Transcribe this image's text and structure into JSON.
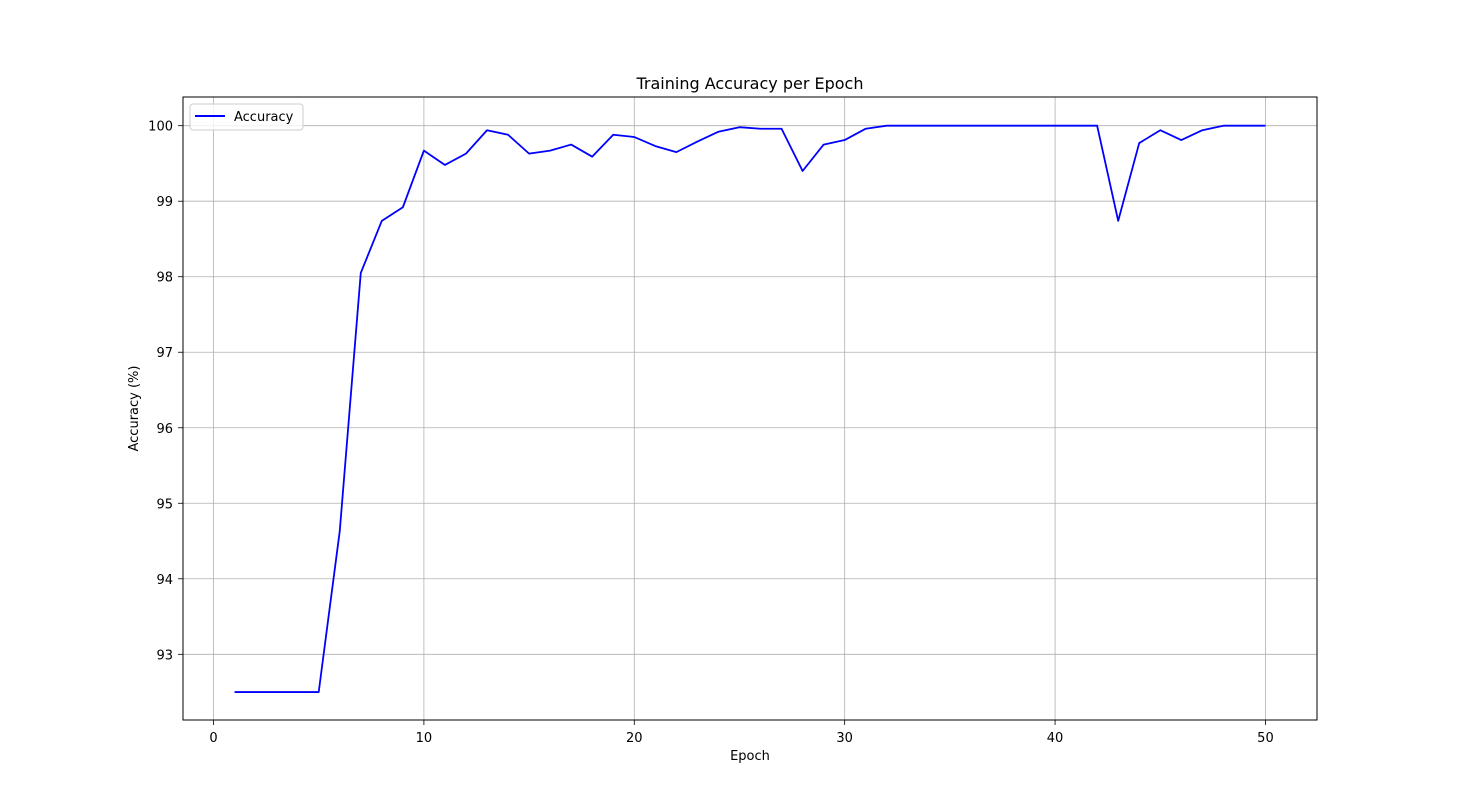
{
  "chart_data": {
    "type": "line",
    "title": "Training Accuracy per Epoch",
    "xlabel": "Epoch",
    "ylabel": "Accuracy (%)",
    "xlim": [
      -1.45,
      52.45
    ],
    "ylim": [
      92.13,
      100.38
    ],
    "xticks": [
      0,
      10,
      20,
      30,
      40,
      50
    ],
    "yticks": [
      93,
      94,
      95,
      96,
      97,
      98,
      99,
      100
    ],
    "grid": true,
    "legend_position": "upper-left",
    "series": [
      {
        "name": "Accuracy",
        "color": "#0000ff",
        "x": [
          1,
          2,
          3,
          4,
          5,
          6,
          7,
          8,
          9,
          10,
          11,
          12,
          13,
          14,
          15,
          16,
          17,
          18,
          19,
          20,
          21,
          22,
          23,
          24,
          25,
          26,
          27,
          28,
          29,
          30,
          31,
          32,
          33,
          34,
          35,
          36,
          37,
          38,
          39,
          40,
          41,
          42,
          43,
          44,
          45,
          46,
          47,
          48,
          49,
          50
        ],
        "y": [
          92.5,
          92.5,
          92.5,
          92.5,
          92.5,
          94.63,
          98.05,
          98.74,
          98.92,
          99.67,
          99.48,
          99.63,
          99.94,
          99.88,
          99.63,
          99.67,
          99.75,
          99.59,
          99.88,
          99.85,
          99.73,
          99.65,
          99.79,
          99.92,
          99.98,
          99.96,
          99.96,
          99.4,
          99.75,
          99.81,
          99.96,
          100.0,
          100.0,
          100.0,
          100.0,
          100.0,
          100.0,
          100.0,
          100.0,
          100.0,
          100.0,
          100.0,
          98.74,
          99.77,
          99.94,
          99.81,
          99.94,
          100.0,
          100.0,
          100.0
        ]
      }
    ]
  }
}
